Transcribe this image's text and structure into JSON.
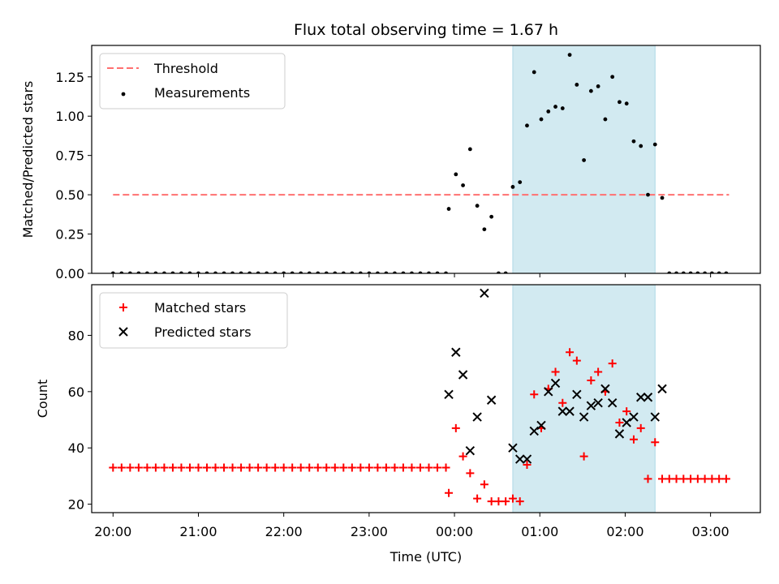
{
  "title": "Flux total observing time = 1.67 h",
  "chart_data": [
    {
      "type": "scatter",
      "title": "Flux total observing time = 1.67 h",
      "ylabel": "Matched/Predicted stars",
      "xlabel": "",
      "xlim": [
        "19:45",
        "03:35"
      ],
      "ylim": [
        0,
        1.45
      ],
      "yticks": [
        "0.00",
        "0.25",
        "0.50",
        "0.75",
        "1.00",
        "1.25"
      ],
      "grid": false,
      "legend": "top-left",
      "shaded_interval": {
        "start": "00:41",
        "end": "02:21",
        "color": "#add8e6"
      },
      "threshold": {
        "name": "Threshold",
        "value": 0.5,
        "x_start": "20:00",
        "x_end": "03:13",
        "color": "#ff7070"
      },
      "series": [
        {
          "name": "Measurements",
          "color": "#000000",
          "x": [
            "20:00",
            "20:06",
            "20:12",
            "20:18",
            "20:24",
            "20:30",
            "20:36",
            "20:42",
            "20:48",
            "20:54",
            "21:00",
            "21:06",
            "21:12",
            "21:18",
            "21:24",
            "21:30",
            "21:36",
            "21:42",
            "21:48",
            "21:54",
            "22:00",
            "22:06",
            "22:12",
            "22:18",
            "22:24",
            "22:30",
            "22:36",
            "22:42",
            "22:48",
            "22:54",
            "23:00",
            "23:06",
            "23:12",
            "23:18",
            "23:24",
            "23:30",
            "23:36",
            "23:42",
            "23:48",
            "23:54",
            "23:56",
            "00:01",
            "00:06",
            "00:11",
            "00:16",
            "00:21",
            "00:26",
            "00:31",
            "00:36",
            "00:41",
            "00:46",
            "00:51",
            "00:56",
            "01:01",
            "01:06",
            "01:11",
            "01:16",
            "01:21",
            "01:26",
            "01:31",
            "01:36",
            "01:41",
            "01:46",
            "01:51",
            "01:56",
            "02:01",
            "02:06",
            "02:11",
            "02:16",
            "02:21",
            "02:26",
            "02:31",
            "02:36",
            "02:41",
            "02:46",
            "02:51",
            "02:56",
            "03:01",
            "03:06",
            "03:11"
          ],
          "y": [
            0,
            0,
            0,
            0,
            0,
            0,
            0,
            0,
            0,
            0,
            0,
            0,
            0,
            0,
            0,
            0,
            0,
            0,
            0,
            0,
            0,
            0,
            0,
            0,
            0,
            0,
            0,
            0,
            0,
            0,
            0,
            0,
            0,
            0,
            0,
            0,
            0,
            0,
            0,
            0,
            0.41,
            0.63,
            0.56,
            0.79,
            0.43,
            0.28,
            0.36,
            0,
            0,
            0.55,
            0.58,
            0.94,
            1.28,
            0.98,
            1.03,
            1.06,
            1.05,
            1.39,
            1.2,
            0.72,
            1.16,
            1.19,
            0.98,
            1.25,
            1.09,
            1.08,
            0.84,
            0.81,
            0.5,
            0.82,
            0.48,
            0,
            0,
            0,
            0,
            0,
            0,
            0,
            0,
            0
          ]
        }
      ]
    },
    {
      "type": "scatter",
      "title": "",
      "ylabel": "Count",
      "xlabel": "Time (UTC)",
      "xlim": [
        "19:45",
        "03:35"
      ],
      "ylim": [
        17,
        98
      ],
      "yticks": [
        "20",
        "40",
        "60",
        "80"
      ],
      "xticks": [
        "20:00",
        "21:00",
        "22:00",
        "23:00",
        "00:00",
        "01:00",
        "02:00",
        "03:00"
      ],
      "grid": false,
      "legend": "top-left",
      "shaded_interval": {
        "start": "00:41",
        "end": "02:21",
        "color": "#add8e6"
      },
      "series": [
        {
          "name": "Matched stars",
          "color": "#ff0000",
          "marker": "+",
          "x": [
            "20:00",
            "20:06",
            "20:12",
            "20:18",
            "20:24",
            "20:30",
            "20:36",
            "20:42",
            "20:48",
            "20:54",
            "21:00",
            "21:06",
            "21:12",
            "21:18",
            "21:24",
            "21:30",
            "21:36",
            "21:42",
            "21:48",
            "21:54",
            "22:00",
            "22:06",
            "22:12",
            "22:18",
            "22:24",
            "22:30",
            "22:36",
            "22:42",
            "22:48",
            "22:54",
            "23:00",
            "23:06",
            "23:12",
            "23:18",
            "23:24",
            "23:30",
            "23:36",
            "23:42",
            "23:48",
            "23:54",
            "23:56",
            "00:01",
            "00:06",
            "00:11",
            "00:16",
            "00:21",
            "00:26",
            "00:31",
            "00:36",
            "00:41",
            "00:46",
            "00:51",
            "00:56",
            "01:01",
            "01:06",
            "01:11",
            "01:16",
            "01:21",
            "01:26",
            "01:31",
            "01:36",
            "01:41",
            "01:46",
            "01:51",
            "01:56",
            "02:01",
            "02:06",
            "02:11",
            "02:16",
            "02:21",
            "02:26",
            "02:31",
            "02:36",
            "02:41",
            "02:46",
            "02:51",
            "02:56",
            "03:01",
            "03:06",
            "03:11"
          ],
          "y": [
            33,
            33,
            33,
            33,
            33,
            33,
            33,
            33,
            33,
            33,
            33,
            33,
            33,
            33,
            33,
            33,
            33,
            33,
            33,
            33,
            33,
            33,
            33,
            33,
            33,
            33,
            33,
            33,
            33,
            33,
            33,
            33,
            33,
            33,
            33,
            33,
            33,
            33,
            33,
            33,
            24,
            47,
            37,
            31,
            22,
            27,
            21,
            21,
            21,
            22,
            21,
            34,
            59,
            47,
            61,
            67,
            56,
            74,
            71,
            37,
            64,
            67,
            60,
            70,
            49,
            53,
            43,
            47,
            29,
            42,
            29,
            29,
            29,
            29,
            29,
            29,
            29,
            29,
            29,
            29
          ]
        },
        {
          "name": "Predicted stars",
          "color": "#000000",
          "marker": "x",
          "x": [
            "23:56",
            "00:01",
            "00:06",
            "00:11",
            "00:16",
            "00:21",
            "00:26",
            "00:41",
            "00:46",
            "00:51",
            "00:56",
            "01:01",
            "01:06",
            "01:11",
            "01:16",
            "01:21",
            "01:26",
            "01:31",
            "01:36",
            "01:41",
            "01:46",
            "01:51",
            "01:56",
            "02:01",
            "02:06",
            "02:11",
            "02:16",
            "02:21",
            "02:26"
          ],
          "y": [
            59,
            74,
            66,
            39,
            51,
            95,
            57,
            40,
            36,
            36,
            46,
            48,
            60,
            63,
            53,
            53,
            59,
            51,
            55,
            56,
            61,
            56,
            45,
            49,
            51,
            58,
            58,
            51,
            61
          ]
        }
      ]
    }
  ]
}
